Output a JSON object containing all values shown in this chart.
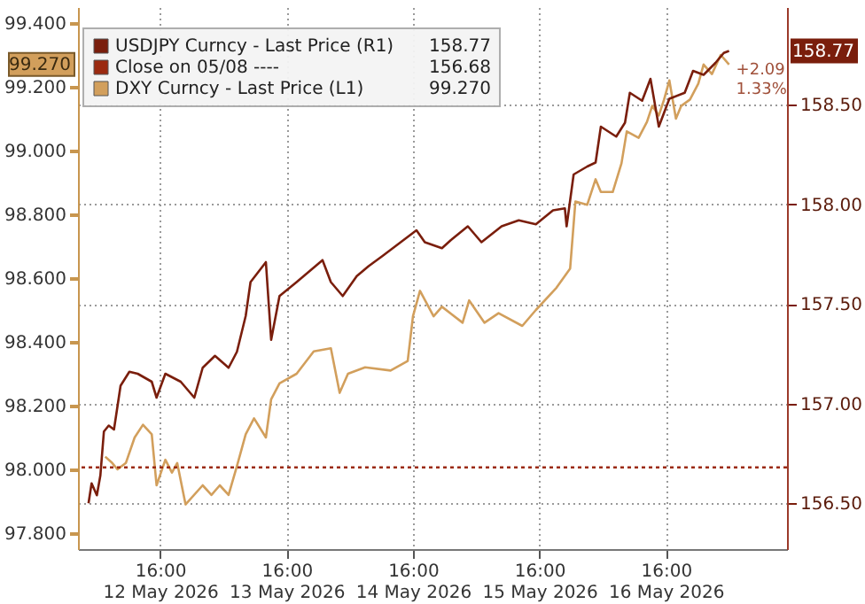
{
  "chart_data": {
    "type": "line",
    "legend": "top left",
    "grid": true,
    "xlim": [
      "2026-05-12T00:25",
      "2026-05-17T15:00"
    ],
    "xticks": [
      {
        "value": "2026-05-12T16:00",
        "label": "16:00\n12 May 2026"
      },
      {
        "value": "2026-05-13T16:00",
        "label": "16:00\n13 May 2026"
      },
      {
        "value": "2026-05-14T16:00",
        "label": "16:00\n14 May 2026"
      },
      {
        "value": "2026-05-15T16:00",
        "label": "16:00\n15 May 2026"
      },
      {
        "value": "2026-05-16T16:00",
        "label": "16:00\n16 May 2026"
      }
    ],
    "ylim": [
      97.75,
      99.45
    ],
    "yticks": [
      {
        "value": 97.8,
        "label": "97.800"
      },
      {
        "value": 98.0,
        "label": "98.000"
      },
      {
        "value": 98.2,
        "label": "98.200"
      },
      {
        "value": 98.4,
        "label": "98.400"
      },
      {
        "value": 98.6,
        "label": "98.600"
      },
      {
        "value": 98.8,
        "label": "98.800"
      },
      {
        "value": 99.0,
        "label": "99.000"
      },
      {
        "value": 99.2,
        "label": "99.200"
      },
      {
        "value": 99.4,
        "label": "99.400"
      }
    ],
    "y2lim": [
      156.27,
      158.99
    ],
    "y2ticks": [
      {
        "value": 156.5,
        "label": "156.50"
      },
      {
        "value": 157.0,
        "label": "157.00"
      },
      {
        "value": 157.5,
        "label": "157.50"
      },
      {
        "value": 158.0,
        "label": "158.00"
      },
      {
        "value": 158.5,
        "label": "158.50"
      }
    ],
    "series": [
      {
        "name": "USDJPY Curncy - Last Price (R1)",
        "color": "#7a1e0c",
        "axis": "y2",
        "x": [
          "2026-05-12T02:25",
          "2026-05-12T03:00",
          "2026-05-12T04:00",
          "2026-05-12T04:40",
          "2026-05-12T05:20",
          "2026-05-12T06:15",
          "2026-05-12T07:15",
          "2026-05-12T08:30",
          "2026-05-12T10:10",
          "2026-05-12T11:45",
          "2026-05-12T14:25",
          "2026-05-12T15:20",
          "2026-05-12T17:00",
          "2026-05-12T19:55",
          "2026-05-12T22:30",
          "2026-05-13T00:05",
          "2026-05-13T02:25",
          "2026-05-13T05:00",
          "2026-05-13T06:35",
          "2026-05-13T08:15",
          "2026-05-13T09:10",
          "2026-05-13T12:05",
          "2026-05-13T13:05",
          "2026-05-13T14:40",
          "2026-05-13T17:55",
          "2026-05-13T22:50",
          "2026-05-14T00:25",
          "2026-05-14T02:40",
          "2026-05-14T05:20",
          "2026-05-14T07:35",
          "2026-05-14T10:10",
          "2026-05-14T16:40",
          "2026-05-14T18:15",
          "2026-05-14T21:30",
          "2026-05-14T23:10",
          "2026-05-15T02:25",
          "2026-05-15T05:00",
          "2026-05-15T08:50",
          "2026-05-15T12:05",
          "2026-05-15T15:20",
          "2026-05-15T18:35",
          "2026-05-15T20:50",
          "2026-05-15T21:10",
          "2026-05-15T22:30",
          "2026-05-16T01:05",
          "2026-05-16T02:40",
          "2026-05-16T03:40",
          "2026-05-16T06:35",
          "2026-05-16T08:15",
          "2026-05-16T09:10",
          "2026-05-16T11:30",
          "2026-05-16T13:05",
          "2026-05-16T14:40",
          "2026-05-16T16:40",
          "2026-05-16T19:35",
          "2026-05-16T21:10",
          "2026-05-16T23:10",
          "2026-05-17T01:25",
          "2026-05-17T03:00",
          "2026-05-17T04:00"
        ],
        "values": [
          156.5,
          156.6,
          156.54,
          156.64,
          156.86,
          156.89,
          156.87,
          157.09,
          157.16,
          157.15,
          157.11,
          157.03,
          157.15,
          157.11,
          157.03,
          157.18,
          157.24,
          157.18,
          157.26,
          157.44,
          157.61,
          157.71,
          157.32,
          157.54,
          157.61,
          157.72,
          157.61,
          157.54,
          157.64,
          157.69,
          157.74,
          157.87,
          157.81,
          157.78,
          157.82,
          157.89,
          157.81,
          157.89,
          157.92,
          157.9,
          157.97,
          157.98,
          157.89,
          158.15,
          158.19,
          158.21,
          158.39,
          158.34,
          158.41,
          158.56,
          158.52,
          158.63,
          158.39,
          158.53,
          158.56,
          158.67,
          158.65,
          158.71,
          158.76,
          158.77
        ]
      },
      {
        "name": "DXY Curncy - Last Price (L1)",
        "color": "#d29f5c",
        "x": [
          "2026-05-12T05:35",
          "2026-05-12T06:55",
          "2026-05-12T07:55",
          "2026-05-12T09:30",
          "2026-05-12T11:10",
          "2026-05-12T12:45",
          "2026-05-12T14:25",
          "2026-05-12T15:20",
          "2026-05-12T17:00",
          "2026-05-12T18:15",
          "2026-05-12T19:15",
          "2026-05-12T20:50",
          "2026-05-13T00:05",
          "2026-05-13T01:45",
          "2026-05-13T03:20",
          "2026-05-13T05:00",
          "2026-05-13T06:35",
          "2026-05-13T08:15",
          "2026-05-13T09:50",
          "2026-05-13T12:05",
          "2026-05-13T13:05",
          "2026-05-13T14:40",
          "2026-05-13T17:55",
          "2026-05-13T21:10",
          "2026-05-14T00:25",
          "2026-05-14T02:05",
          "2026-05-14T03:40",
          "2026-05-14T06:55",
          "2026-05-14T11:45",
          "2026-05-14T15:00",
          "2026-05-14T16:00",
          "2026-05-14T17:20",
          "2026-05-14T19:55",
          "2026-05-14T21:30",
          "2026-05-15T01:25",
          "2026-05-15T02:40",
          "2026-05-15T05:35",
          "2026-05-15T08:15",
          "2026-05-15T12:45",
          "2026-05-15T15:20",
          "2026-05-15T19:15",
          "2026-05-15T21:50",
          "2026-05-15T22:50",
          "2026-05-16T01:05",
          "2026-05-16T02:40",
          "2026-05-16T03:40",
          "2026-05-16T05:55",
          "2026-05-16T07:35",
          "2026-05-16T08:35",
          "2026-05-16T10:50",
          "2026-05-16T12:25",
          "2026-05-16T13:25",
          "2026-05-16T14:40",
          "2026-05-16T15:40",
          "2026-05-16T16:40",
          "2026-05-16T17:55",
          "2026-05-16T18:55",
          "2026-05-16T20:35",
          "2026-05-16T22:10",
          "2026-05-16T23:10",
          "2026-05-17T00:45",
          "2026-05-17T02:25",
          "2026-05-17T04:00"
        ],
        "values": [
          98.04,
          98.02,
          98.0,
          98.02,
          98.1,
          98.14,
          98.11,
          97.95,
          98.03,
          97.99,
          98.02,
          97.89,
          97.95,
          97.92,
          97.95,
          97.92,
          98.01,
          98.11,
          98.16,
          98.1,
          98.22,
          98.27,
          98.3,
          98.37,
          98.38,
          98.24,
          98.3,
          98.32,
          98.31,
          98.34,
          98.48,
          98.56,
          98.48,
          98.51,
          98.46,
          98.53,
          98.46,
          98.49,
          98.45,
          98.5,
          98.57,
          98.63,
          98.84,
          98.83,
          98.91,
          98.87,
          98.87,
          98.96,
          99.06,
          99.04,
          99.09,
          99.14,
          99.11,
          99.16,
          99.22,
          99.1,
          99.14,
          99.16,
          99.21,
          99.27,
          99.24,
          99.3,
          99.27
        ]
      }
    ],
    "ref_lines": [
      {
        "axis": "y2",
        "value": 156.68,
        "label": "Close on 05/08 ----",
        "color": "#9b2a10",
        "line_style": "dotted"
      }
    ],
    "annotations": [
      "158.77",
      "156.68",
      "99.270",
      {
        "text": "99.270",
        "y": 99.27
      },
      "158.77",
      "+2.09",
      "1.33%"
    ]
  }
}
